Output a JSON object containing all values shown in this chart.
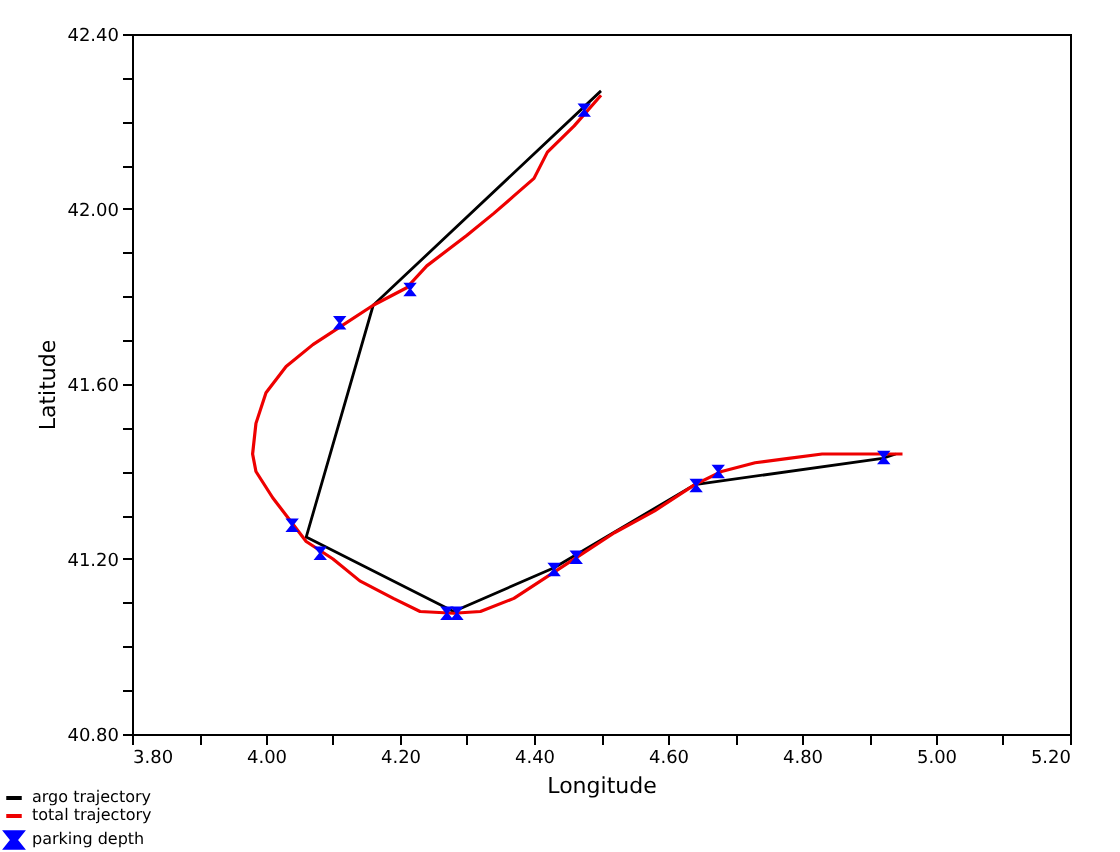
{
  "chart_data": {
    "type": "line",
    "xlabel": "Longitude",
    "ylabel": "Latitude",
    "xlim": [
      3.8,
      5.2
    ],
    "ylim": [
      40.8,
      42.4
    ],
    "xticks": [
      {
        "value": 3.8,
        "label": "3.80"
      },
      {
        "value": 3.9,
        "label": null
      },
      {
        "value": 4.0,
        "label": "4.00"
      },
      {
        "value": 4.1,
        "label": null
      },
      {
        "value": 4.2,
        "label": "4.20"
      },
      {
        "value": 4.3,
        "label": null
      },
      {
        "value": 4.4,
        "label": "4.40"
      },
      {
        "value": 4.5,
        "label": null
      },
      {
        "value": 4.6,
        "label": "4.60"
      },
      {
        "value": 4.7,
        "label": null
      },
      {
        "value": 4.8,
        "label": "4.80"
      },
      {
        "value": 4.9,
        "label": null
      },
      {
        "value": 5.0,
        "label": "5.00"
      },
      {
        "value": 5.1,
        "label": null
      },
      {
        "value": 5.2,
        "label": "5.20"
      }
    ],
    "yticks": [
      {
        "value": 40.8,
        "label": "40.80"
      },
      {
        "value": 40.9,
        "label": null
      },
      {
        "value": 41.0,
        "label": null
      },
      {
        "value": 41.1,
        "label": null
      },
      {
        "value": 41.2,
        "label": "41.20"
      },
      {
        "value": 41.3,
        "label": null
      },
      {
        "value": 41.4,
        "label": null
      },
      {
        "value": 41.5,
        "label": null
      },
      {
        "value": 41.6,
        "label": "41.60"
      },
      {
        "value": 41.7,
        "label": null
      },
      {
        "value": 41.8,
        "label": null
      },
      {
        "value": 41.9,
        "label": null
      },
      {
        "value": 42.0,
        "label": "42.00"
      },
      {
        "value": 42.1,
        "label": null
      },
      {
        "value": 42.2,
        "label": null
      },
      {
        "value": 42.3,
        "label": null
      },
      {
        "value": 42.4,
        "label": "42.40"
      }
    ],
    "grid": false,
    "legend": "bottom left",
    "series": [
      {
        "name": "argo trajectory",
        "color": "#000000",
        "x": [
          4.5,
          4.16,
          4.06,
          4.28,
          4.43,
          4.64,
          4.92,
          4.94
        ],
        "values": [
          42.27,
          41.78,
          41.25,
          41.08,
          41.18,
          41.37,
          41.43,
          41.44
        ]
      },
      {
        "name": "total trajectory",
        "color": "#ee0000",
        "x": [
          4.5,
          4.46,
          4.42,
          4.4,
          4.37,
          4.34,
          4.3,
          4.24,
          4.21,
          4.16,
          4.11,
          4.07,
          4.03,
          4.0,
          3.985,
          3.98,
          3.985,
          4.01,
          4.04,
          4.06,
          4.1,
          4.14,
          4.19,
          4.23,
          4.28,
          4.32,
          4.37,
          4.43,
          4.47,
          4.52,
          4.58,
          4.64,
          4.68,
          4.73,
          4.78,
          4.83,
          4.88,
          4.92,
          4.95
        ],
        "values": [
          42.26,
          42.19,
          42.13,
          42.07,
          42.03,
          41.99,
          41.94,
          41.87,
          41.82,
          41.78,
          41.73,
          41.69,
          41.64,
          41.58,
          41.51,
          41.44,
          41.4,
          41.34,
          41.28,
          41.24,
          41.2,
          41.15,
          41.11,
          41.08,
          41.076,
          41.08,
          41.11,
          41.17,
          41.21,
          41.26,
          41.31,
          41.37,
          41.4,
          41.42,
          41.43,
          41.44,
          41.44,
          41.44,
          41.44
        ]
      },
      {
        "name": "parking depth",
        "type": "scatter",
        "color": "#0000ff",
        "x": [
          4.475,
          4.215,
          4.11,
          4.039,
          4.081,
          4.27,
          4.285,
          4.43,
          4.463,
          4.642,
          4.675,
          4.922
        ],
        "values": [
          42.226,
          41.816,
          41.74,
          41.277,
          41.213,
          41.076,
          41.076,
          41.176,
          41.204,
          41.368,
          41.4,
          41.432
        ]
      }
    ]
  }
}
